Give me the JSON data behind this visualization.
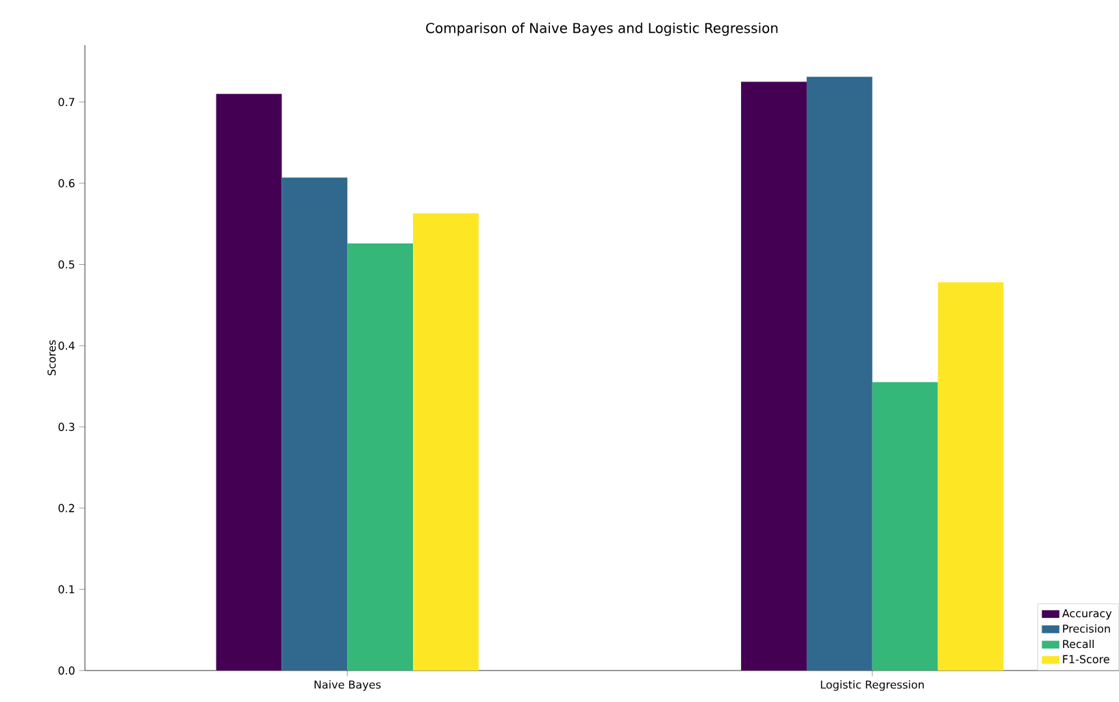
{
  "chart_data": {
    "type": "bar",
    "title": "Comparison of Naive Bayes and Logistic Regression",
    "ylabel": "Scores",
    "categories": [
      "Naive Bayes",
      "Logistic Regression"
    ],
    "series": [
      {
        "name": "Accuracy",
        "color": "#440154",
        "values": [
          0.71,
          0.725
        ]
      },
      {
        "name": "Precision",
        "color": "#31688e",
        "values": [
          0.607,
          0.731
        ]
      },
      {
        "name": "Recall",
        "color": "#35b779",
        "values": [
          0.526,
          0.355
        ]
      },
      {
        "name": "F1-Score",
        "color": "#fde725",
        "values": [
          0.563,
          0.478
        ]
      }
    ],
    "ylim": [
      0,
      0.77
    ],
    "yticks": [
      {
        "value": 0,
        "label": "0.0"
      },
      0.1,
      0.2,
      0.3,
      0.4,
      0.5,
      0.6,
      0.7
    ],
    "legend": "bottom right",
    "grid": false
  }
}
